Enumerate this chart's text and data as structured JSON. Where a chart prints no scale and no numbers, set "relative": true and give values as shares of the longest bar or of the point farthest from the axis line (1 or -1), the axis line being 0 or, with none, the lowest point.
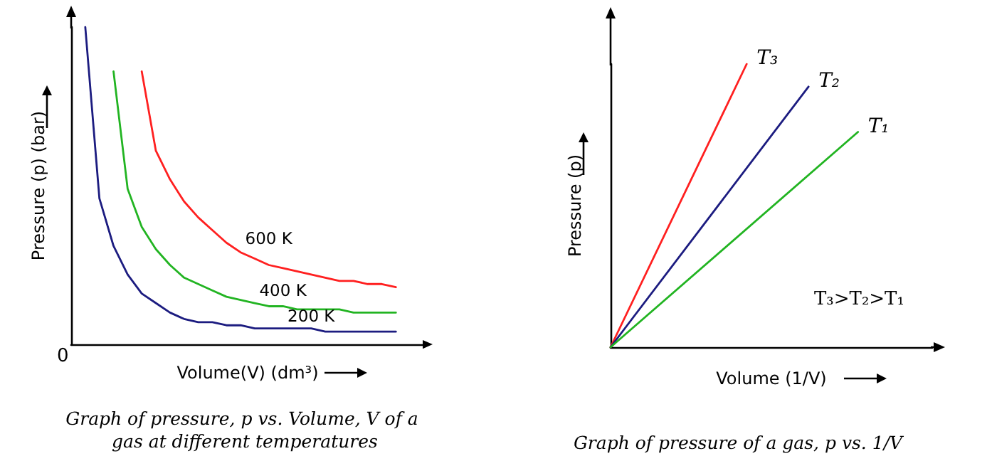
{
  "chart_data": [
    {
      "type": "line",
      "title": "Graph of pressure, p vs. Volume, V of a gas at different temperatures",
      "xlabel": "Volume(V) (dm³)",
      "ylabel": "Pressure (p) (bar)",
      "annotations": [
        "0"
      ],
      "relative": true,
      "categories": [
        null,
        null,
        null,
        null,
        null,
        null,
        null,
        null,
        null,
        null,
        null,
        null,
        null,
        null,
        null,
        null,
        null,
        null,
        null,
        null,
        null,
        null,
        null,
        null,
        null,
        null
      ],
      "series": [
        {
          "name": "200 K",
          "color": "#1c1c80",
          "values": [
            null,
            1.0,
            0.46,
            0.31,
            0.22,
            0.16,
            0.13,
            0.1,
            0.08,
            0.07,
            0.07,
            0.06,
            0.06,
            0.05,
            0.05,
            0.05,
            0.05,
            0.05,
            0.04,
            0.04,
            0.04,
            0.04,
            0.04,
            0.04,
            null,
            null
          ]
        },
        {
          "name": "400 K",
          "color": "#22b422",
          "values": [
            null,
            null,
            null,
            0.86,
            0.49,
            0.37,
            0.3,
            0.25,
            0.21,
            0.19,
            0.17,
            0.15,
            0.14,
            0.13,
            0.12,
            0.12,
            0.11,
            0.11,
            0.11,
            0.11,
            0.1,
            0.1,
            0.1,
            0.1,
            null,
            null
          ]
        },
        {
          "name": "600 K",
          "color": "#ff2020",
          "values": [
            null,
            null,
            null,
            null,
            null,
            0.86,
            0.61,
            0.52,
            0.45,
            0.4,
            0.36,
            0.32,
            0.29,
            0.27,
            0.25,
            0.24,
            0.23,
            0.22,
            0.21,
            0.2,
            0.2,
            0.19,
            0.19,
            0.18,
            null,
            null
          ]
        }
      ],
      "marker": "none",
      "legend": false,
      "grid": false,
      "tick_labels": false
    },
    {
      "type": "line",
      "title": "Graph of pressure of a gas, p vs. 1/V",
      "xlabel": "Volume (1/V)",
      "ylabel": "Pressure (p)",
      "annotations": [
        "T₃>T₂>T₁"
      ],
      "relative": true,
      "categories": [
        null,
        null,
        null,
        null,
        null,
        null,
        null,
        null,
        null,
        null,
        null,
        null,
        null,
        null,
        null,
        null,
        null,
        null,
        null,
        null,
        null,
        null,
        null,
        null,
        null,
        null,
        null
      ],
      "series": [
        {
          "name": "T₃",
          "color": "#ff2020",
          "values": [
            0,
            null,
            null,
            null,
            null,
            null,
            null,
            null,
            null,
            null,
            null,
            1,
            null,
            null,
            null,
            null,
            null,
            null,
            null,
            null,
            null,
            null,
            null,
            null,
            null,
            null,
            null
          ]
        },
        {
          "name": "T₂",
          "color": "#1c1c80",
          "values": [
            0,
            null,
            null,
            null,
            null,
            null,
            null,
            null,
            null,
            null,
            null,
            null,
            null,
            null,
            null,
            null,
            0.92,
            null,
            null,
            null,
            null,
            null,
            null,
            null,
            null,
            null,
            null
          ]
        },
        {
          "name": "T₁",
          "color": "#22b422",
          "values": [
            0,
            null,
            null,
            null,
            null,
            null,
            null,
            null,
            null,
            null,
            null,
            null,
            null,
            null,
            null,
            null,
            null,
            null,
            null,
            null,
            0.76,
            null,
            null,
            null,
            null,
            null,
            null
          ]
        }
      ],
      "marker": "none",
      "legend": false,
      "grid": false,
      "tick_labels": false
    }
  ]
}
